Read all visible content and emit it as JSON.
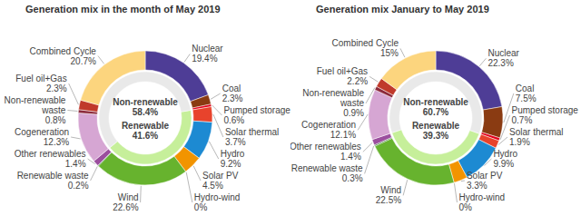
{
  "chart_data": [
    {
      "type": "pie",
      "title": "Generation mix in the month of May 2019",
      "data_labels": true,
      "categories": [
        "Nuclear",
        "Coal",
        "Pumped storage",
        "Solar thermal",
        "Hydro",
        "Solar PV",
        "Hydro-wind",
        "Wind",
        "Renewable waste",
        "Other renewables",
        "Cogeneration",
        "Non-renewable waste",
        "Fuel oil+Gas",
        "Combined Cycle"
      ],
      "values": [
        19.4,
        2.3,
        0.6,
        3.7,
        9.2,
        4.5,
        0,
        22.6,
        0.2,
        1.4,
        12.3,
        0.8,
        2.3,
        20.7
      ],
      "value_labels": [
        "19.4%",
        "2.3%",
        "0.6%",
        "3.7%",
        "9.2%",
        "4.5%",
        "0%",
        "22.6%",
        "0.2%",
        "1.4%",
        "12.3%",
        "0.8%",
        "2.3%",
        "20.7%"
      ],
      "colors": [
        "#4e3d96",
        "#8a3b12",
        "#e2001a",
        "#e8432c",
        "#1d8ad2",
        "#f29400",
        "#2aa6a0",
        "#67b32e",
        "#2f6d2a",
        "#9b4f9e",
        "#d6a6d3",
        "#8c2a3c",
        "#c0392b",
        "#fcd57e"
      ],
      "groups": [
        "Non-renewable",
        "Non-renewable",
        "Non-renewable",
        "Renewable",
        "Renewable",
        "Renewable",
        "Renewable",
        "Renewable",
        "Renewable",
        "Renewable",
        "Non-renewable",
        "Non-renewable",
        "Non-renewable",
        "Non-renewable"
      ],
      "inner": {
        "categories": [
          "Non-renewable",
          "Renewable"
        ],
        "values": [
          58.4,
          41.6
        ],
        "value_labels": [
          "58.4%",
          "41.6%"
        ],
        "colors": [
          "#e9e9e9",
          "#c6ef9a"
        ]
      }
    },
    {
      "type": "pie",
      "title": "Generation mix January to May 2019",
      "data_labels": true,
      "categories": [
        "Nuclear",
        "Coal",
        "Pumped storage",
        "Solar thermal",
        "Hydro",
        "Solar PV",
        "Hydro-wind",
        "Wind",
        "Renewable waste",
        "Other renewables",
        "Cogeneration",
        "Non-renewable waste",
        "Fuel oil+Gas",
        "Combined Cycle"
      ],
      "values": [
        22.3,
        7.5,
        0.7,
        1.9,
        9.9,
        3.3,
        0,
        22.5,
        0.3,
        1.4,
        12.1,
        0.9,
        2.2,
        15
      ],
      "value_labels": [
        "22.3%",
        "7.5%",
        "0.7%",
        "1.9%",
        "9.9%",
        "3.3%",
        "0%",
        "22.5%",
        "0.3%",
        "1.4%",
        "12.1%",
        "0.9%",
        "2.2%",
        "15%"
      ],
      "colors": [
        "#4e3d96",
        "#8a3b12",
        "#e2001a",
        "#e8432c",
        "#1d8ad2",
        "#f29400",
        "#2aa6a0",
        "#67b32e",
        "#2f6d2a",
        "#9b4f9e",
        "#d6a6d3",
        "#8c2a3c",
        "#c0392b",
        "#fcd57e"
      ],
      "groups": [
        "Non-renewable",
        "Non-renewable",
        "Non-renewable",
        "Renewable",
        "Renewable",
        "Renewable",
        "Renewable",
        "Renewable",
        "Renewable",
        "Renewable",
        "Non-renewable",
        "Non-renewable",
        "Non-renewable",
        "Non-renewable"
      ],
      "inner": {
        "categories": [
          "Non-renewable",
          "Renewable"
        ],
        "values": [
          60.7,
          39.3
        ],
        "value_labels": [
          "60.7%",
          "39.3%"
        ],
        "colors": [
          "#e9e9e9",
          "#c6ef9a"
        ]
      }
    }
  ]
}
